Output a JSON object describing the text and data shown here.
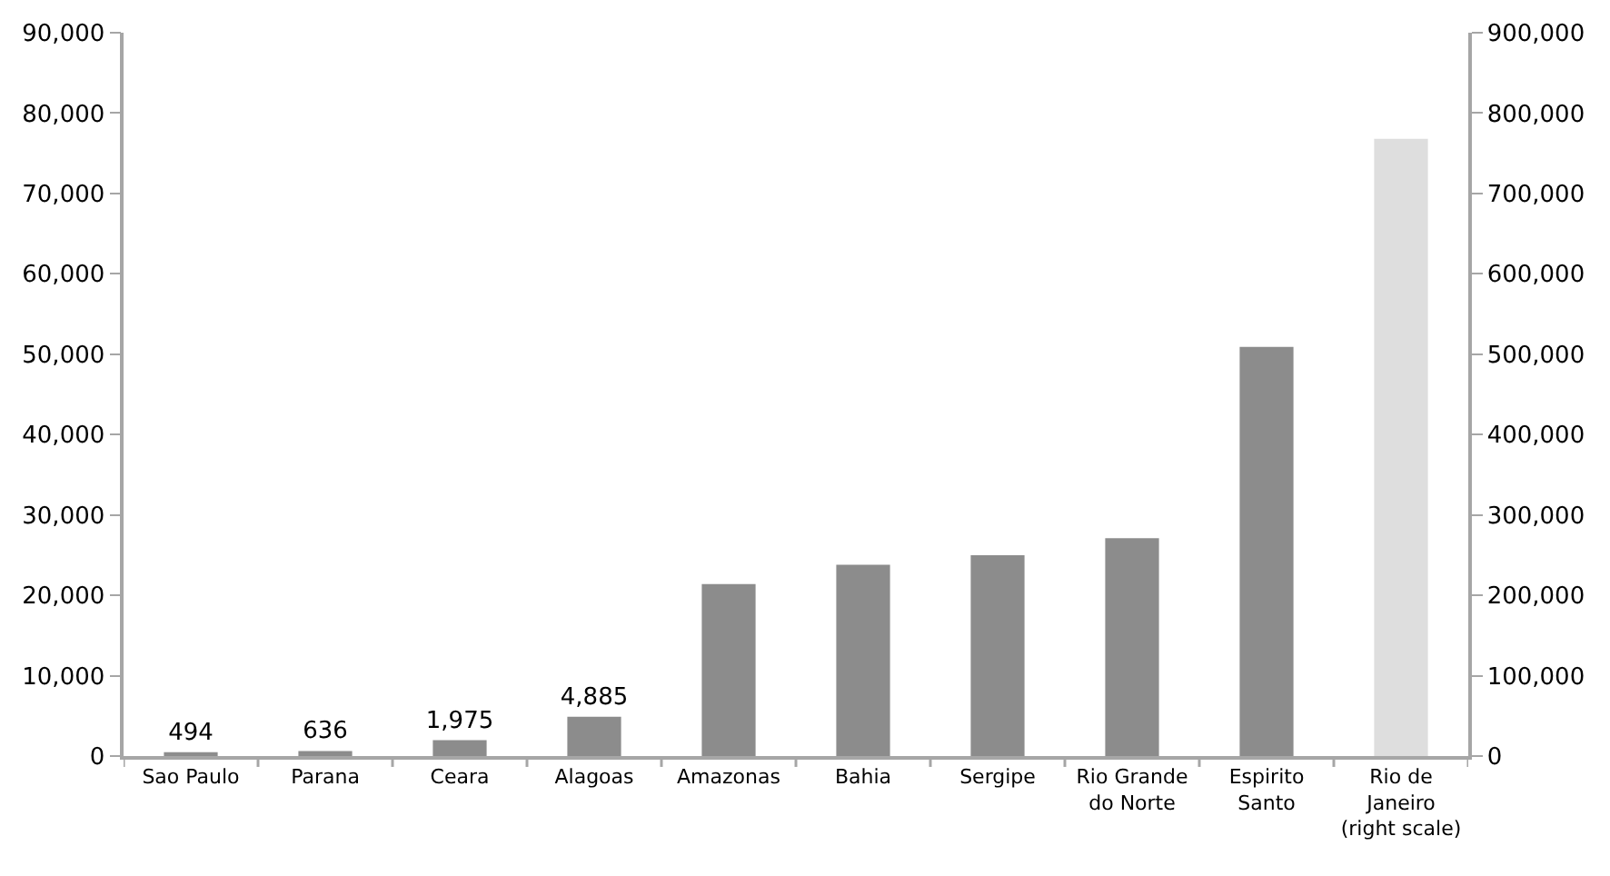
{
  "chart_data": {
    "type": "bar",
    "categories": [
      "Sao Paulo",
      "Parana",
      "Ceara",
      "Alagoas",
      "Amazonas",
      "Bahia",
      "Sergipe",
      "Rio Grande do Norte",
      "Espirito Santo",
      "Rio de Janeiro (right scale)"
    ],
    "series": [
      {
        "color": "#8c8c8c",
        "values": [
          494,
          636,
          1975,
          4885,
          21400,
          23800,
          25000,
          27100,
          50900,
          null
        ],
        "value_labels": [
          "494",
          "636",
          "1,975",
          "4,885",
          null,
          null,
          null,
          null,
          null,
          null
        ]
      },
      {
        "color": "#dedede",
        "axis": "y2",
        "values": [
          null,
          null,
          null,
          null,
          null,
          null,
          null,
          null,
          null,
          768000
        ]
      }
    ],
    "ylim": [
      0,
      90000
    ],
    "yticks": [
      {
        "value": 0,
        "label": "0"
      },
      {
        "value": 10000,
        "label": "10,000"
      },
      {
        "value": 20000,
        "label": "20,000"
      },
      {
        "value": 30000,
        "label": "30,000"
      },
      {
        "value": 40000,
        "label": "40,000"
      },
      {
        "value": 50000,
        "label": "50,000"
      },
      {
        "value": 60000,
        "label": "60,000"
      },
      {
        "value": 70000,
        "label": "70,000"
      },
      {
        "value": 80000,
        "label": "80,000"
      },
      {
        "value": 90000,
        "label": "90,000"
      }
    ],
    "y2lim": [
      0,
      900000
    ],
    "y2ticks": [
      {
        "value": 0,
        "label": "0"
      },
      {
        "value": 100000,
        "label": "100,000"
      },
      {
        "value": 200000,
        "label": "200,000"
      },
      {
        "value": 300000,
        "label": "300,000"
      },
      {
        "value": 400000,
        "label": "400,000"
      },
      {
        "value": 500000,
        "label": "500,000"
      },
      {
        "value": 600000,
        "label": "600,000"
      },
      {
        "value": 700000,
        "label": "700,000"
      },
      {
        "value": 800000,
        "label": "800,000"
      },
      {
        "value": 900000,
        "label": "900,000"
      }
    ],
    "tick_labels": true
  }
}
